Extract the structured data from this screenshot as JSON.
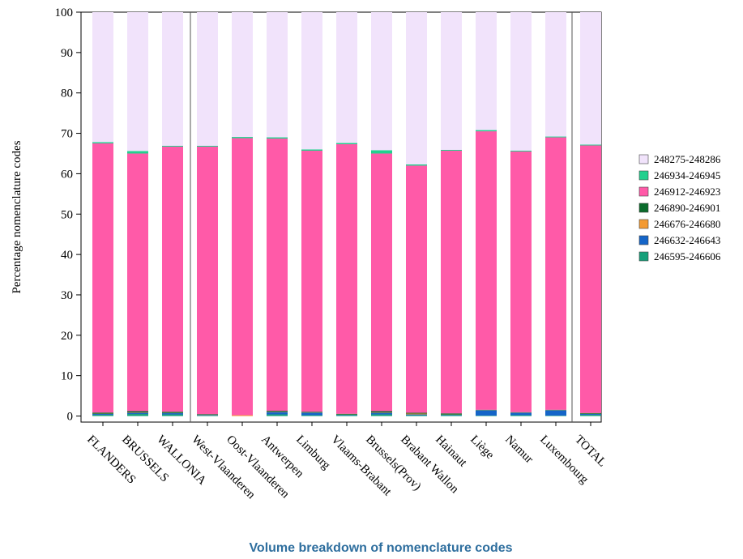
{
  "chart_data": {
    "type": "stacked_bar",
    "title": "Volume breakdown of nomenclature codes",
    "y_label": "Percentage nomenclature codes",
    "categories": [
      "FLANDERS",
      "BRUSSELS",
      "WALLONIA",
      "West-Vlaanderen",
      "Oost-Vlaanderen",
      "Antwerpen",
      "Limburg",
      "Vlaams-Brabant",
      "Brussels(Prov)",
      "Brabant Wallon",
      "Hainaut",
      "Liège",
      "Namur",
      "Luxembourg",
      "TOTAL"
    ],
    "series": [
      {
        "name": "246595-246606",
        "color": "#17a07a",
        "values": [
          0.3,
          0.5,
          0.4,
          0.1,
          0.0,
          0.4,
          0.2,
          0.2,
          0.4,
          0.2,
          0.2,
          0.1,
          0.2,
          0.1,
          0.3
        ]
      },
      {
        "name": "246632-246643",
        "color": "#1565c8",
        "values": [
          0.2,
          0.3,
          0.3,
          0.1,
          0.0,
          0.6,
          0.6,
          0.1,
          0.4,
          0.2,
          0.1,
          1.3,
          0.6,
          1.3,
          0.2
        ]
      },
      {
        "name": "246676-246680",
        "color": "#f39a32",
        "values": [
          0.05,
          0.1,
          0.05,
          0.05,
          0.2,
          0.1,
          0.05,
          0.05,
          0.1,
          0.2,
          0.05,
          0.05,
          0.05,
          0.05,
          0.05
        ]
      },
      {
        "name": "246890-246901",
        "color": "#0b6b2c",
        "values": [
          0.3,
          0.3,
          0.3,
          0.2,
          0.0,
          0.2,
          0.2,
          0.2,
          0.3,
          0.2,
          0.3,
          0.1,
          0.1,
          0.1,
          0.2
        ]
      },
      {
        "name": "246912-246923",
        "color": "#ff5aa8",
        "values": [
          66.65,
          63.8,
          65.65,
          66.25,
          68.6,
          67.4,
          64.65,
          66.75,
          63.8,
          61.2,
          65.05,
          68.95,
          64.55,
          67.45,
          66.25
        ]
      },
      {
        "name": "246934-246945",
        "color": "#22d08e",
        "values": [
          0.3,
          0.6,
          0.2,
          0.2,
          0.3,
          0.3,
          0.3,
          0.3,
          0.8,
          0.3,
          0.2,
          0.3,
          0.2,
          0.2,
          0.2
        ]
      },
      {
        "name": "248275-248286",
        "color": "#f1e3fb",
        "values": [
          32.2,
          34.4,
          33.1,
          33.1,
          30.9,
          31.0,
          34.0,
          32.4,
          34.2,
          37.7,
          34.1,
          29.2,
          34.3,
          30.8,
          32.8
        ]
      }
    ],
    "ylim": [
      -1.5,
      100
    ],
    "yticks": [
      0,
      10,
      20,
      30,
      40,
      50,
      60,
      70,
      80,
      90,
      100
    ]
  }
}
